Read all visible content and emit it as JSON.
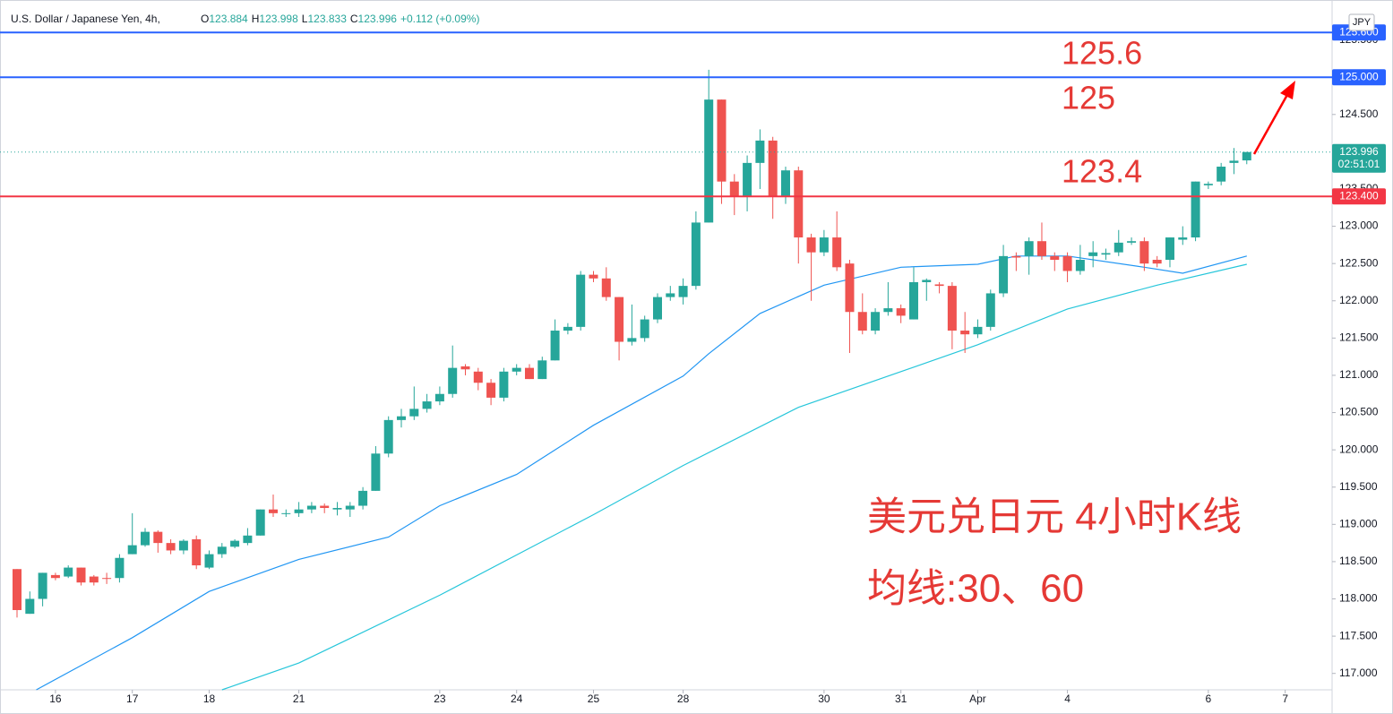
{
  "chart_data": {
    "type": "candlestick",
    "header": {
      "title": "U.S. Dollar / Japanese Yen, 4h,",
      "ohlc": [
        {
          "label": "O",
          "value": "123.884"
        },
        {
          "label": "H",
          "value": "123.998"
        },
        {
          "label": "L",
          "value": "123.833"
        },
        {
          "label": "C",
          "value": "123.996"
        }
      ],
      "change": "+0.112 (+0.09%)"
    },
    "currency": "JPY",
    "up_color": "#26a69a",
    "down_color": "#ef5350",
    "open": [
      118.4,
      117.8,
      118.0,
      118.32,
      118.3,
      118.42,
      118.3,
      118.28,
      118.28,
      118.6,
      118.72,
      118.9,
      118.75,
      118.65,
      118.8,
      118.42,
      118.6,
      118.7,
      118.75,
      118.85,
      119.2,
      119.15,
      119.15,
      119.2,
      119.25,
      119.2,
      119.2,
      119.25,
      119.45,
      119.95,
      120.4,
      120.45,
      120.55,
      120.65,
      120.75,
      121.12,
      121.05,
      120.9,
      120.7,
      121.05,
      121.1,
      120.95,
      121.2,
      121.6,
      121.65,
      122.35,
      122.3,
      122.05,
      121.45,
      121.5,
      121.75,
      122.05,
      122.05,
      122.2,
      123.05,
      124.7,
      123.6,
      123.4,
      123.85,
      124.15,
      123.4,
      123.75,
      122.85,
      122.65,
      122.85,
      122.5,
      121.85,
      121.6,
      121.85,
      121.9,
      121.75,
      122.25,
      122.22,
      122.2,
      121.6,
      121.55,
      121.65,
      122.1,
      122.6,
      122.6,
      122.8,
      122.6,
      122.6,
      122.4,
      122.6,
      122.62,
      122.65,
      122.78,
      122.8,
      122.55,
      122.55,
      122.82,
      122.85,
      123.55,
      123.6,
      123.85,
      123.884
    ],
    "high": [
      118.4,
      118.1,
      118.35,
      118.35,
      118.45,
      118.42,
      118.32,
      118.35,
      118.6,
      119.15,
      118.95,
      118.92,
      118.8,
      118.8,
      118.85,
      118.65,
      118.75,
      118.8,
      118.95,
      119.2,
      119.4,
      119.2,
      119.3,
      119.3,
      119.28,
      119.3,
      119.3,
      119.5,
      120.05,
      120.45,
      120.55,
      120.85,
      120.75,
      120.85,
      121.4,
      121.15,
      121.1,
      120.95,
      121.1,
      121.15,
      121.15,
      121.25,
      121.75,
      121.7,
      122.4,
      122.4,
      122.45,
      122.05,
      121.95,
      121.8,
      122.1,
      122.2,
      122.3,
      123.2,
      125.1,
      124.7,
      123.7,
      123.95,
      124.3,
      124.2,
      123.8,
      123.8,
      122.9,
      122.95,
      123.2,
      122.55,
      122.1,
      121.9,
      122.25,
      121.95,
      122.45,
      122.3,
      122.25,
      122.25,
      121.85,
      121.75,
      122.15,
      122.75,
      122.65,
      122.85,
      123.05,
      122.65,
      122.65,
      122.75,
      122.8,
      122.7,
      122.95,
      122.85,
      122.85,
      122.6,
      122.85,
      123.0,
      123.6,
      123.6,
      123.85,
      124.05,
      123.998
    ],
    "low": [
      117.75,
      117.8,
      117.9,
      118.25,
      118.28,
      118.18,
      118.18,
      118.2,
      118.22,
      118.6,
      118.7,
      118.62,
      118.6,
      118.6,
      118.4,
      118.4,
      118.55,
      118.68,
      118.72,
      118.85,
      119.1,
      119.1,
      119.1,
      119.15,
      119.15,
      119.12,
      119.1,
      119.2,
      119.45,
      119.9,
      120.3,
      120.4,
      120.5,
      120.6,
      120.7,
      121.0,
      120.8,
      120.6,
      120.65,
      121.0,
      120.95,
      120.95,
      121.2,
      121.55,
      121.6,
      122.25,
      122.0,
      121.2,
      121.4,
      121.45,
      121.7,
      122.0,
      121.95,
      122.15,
      123.05,
      123.3,
      123.15,
      123.2,
      123.5,
      123.1,
      123.3,
      122.5,
      122.0,
      122.6,
      122.4,
      121.3,
      121.55,
      121.55,
      121.8,
      121.7,
      121.75,
      122.0,
      122.1,
      121.35,
      121.3,
      121.5,
      121.6,
      122.05,
      122.4,
      122.35,
      122.55,
      122.4,
      122.25,
      122.35,
      122.45,
      122.55,
      122.6,
      122.75,
      122.4,
      122.45,
      122.45,
      122.75,
      122.8,
      123.5,
      123.55,
      123.7,
      123.833
    ],
    "close": [
      117.85,
      118.0,
      118.35,
      118.28,
      118.42,
      118.22,
      118.22,
      118.27,
      118.55,
      118.72,
      118.9,
      118.75,
      118.65,
      118.78,
      118.45,
      118.6,
      118.7,
      118.78,
      118.85,
      119.2,
      119.15,
      119.15,
      119.2,
      119.25,
      119.22,
      119.22,
      119.25,
      119.45,
      119.95,
      120.4,
      120.45,
      120.55,
      120.65,
      120.75,
      121.1,
      121.08,
      120.9,
      120.7,
      121.05,
      121.1,
      120.95,
      121.2,
      121.6,
      121.65,
      122.35,
      122.3,
      122.05,
      121.45,
      121.5,
      121.75,
      122.05,
      122.1,
      122.2,
      123.05,
      124.7,
      123.6,
      123.4,
      123.85,
      124.15,
      123.4,
      123.75,
      122.85,
      122.65,
      122.85,
      122.45,
      121.85,
      121.6,
      121.85,
      121.9,
      121.8,
      122.25,
      122.28,
      122.2,
      121.6,
      121.55,
      121.65,
      122.1,
      122.6,
      122.58,
      122.8,
      122.6,
      122.55,
      122.4,
      122.55,
      122.65,
      122.64,
      122.78,
      122.8,
      122.5,
      122.5,
      122.85,
      122.85,
      123.6,
      123.57,
      123.8,
      123.88,
      123.996
    ],
    "moving_averages": [
      {
        "color": "#2196f3",
        "x": [
          1.5,
          9,
          15,
          22,
          29,
          33,
          39,
          45,
          52,
          54,
          58,
          63,
          69,
          75,
          78,
          82,
          88,
          91,
          96
        ],
        "values": [
          116.78,
          117.48,
          118.1,
          118.53,
          118.83,
          119.25,
          119.67,
          120.33,
          120.99,
          121.29,
          121.83,
          122.21,
          122.45,
          122.49,
          122.6,
          122.6,
          122.45,
          122.37,
          122.6
        ]
      },
      {
        "color": "#26c6da",
        "x": [
          16,
          22,
          33,
          45,
          52,
          61,
          69,
          75,
          82,
          89,
          96
        ],
        "values": [
          116.78,
          117.14,
          118.05,
          119.13,
          119.79,
          120.57,
          121.05,
          121.41,
          121.89,
          122.21,
          122.49
        ]
      }
    ],
    "hlines": [
      {
        "value": 125.6,
        "label": "125.600",
        "color": "#2962ff"
      },
      {
        "value": 125.0,
        "label": "125.000",
        "color": "#2962ff"
      },
      {
        "value": 123.4,
        "label": "123.400",
        "color": "#f23645"
      }
    ],
    "last_price": {
      "value": 123.996,
      "label": "123.996",
      "countdown": "02:51:01"
    },
    "annotations": [
      "125.6",
      "125",
      "123.4",
      "美元兑日元 4小时K线",
      "均线:30、60"
    ],
    "xlim": [
      -0.77,
      102.66
    ],
    "ylim": [
      116.78,
      125.94
    ],
    "xticks": [
      {
        "value": 3,
        "label": "16"
      },
      {
        "value": 9,
        "label": "17"
      },
      {
        "value": 15,
        "label": "18"
      },
      {
        "value": 22,
        "label": "21"
      },
      {
        "value": 33,
        "label": "23"
      },
      {
        "value": 39,
        "label": "24"
      },
      {
        "value": 45,
        "label": "25"
      },
      {
        "value": 52,
        "label": "28"
      },
      {
        "value": 63,
        "label": "30"
      },
      {
        "value": 69,
        "label": "31"
      },
      {
        "value": 75,
        "label": "Apr"
      },
      {
        "value": 82,
        "label": "4"
      },
      {
        "value": 93,
        "label": "6"
      },
      {
        "value": 99,
        "label": "7"
      }
    ],
    "yticks": [
      {
        "value": 117,
        "label": "117.000"
      },
      {
        "value": 117.5,
        "label": "117.500"
      },
      {
        "value": 118,
        "label": "118.000"
      },
      {
        "value": 118.5,
        "label": "118.500"
      },
      {
        "value": 119,
        "label": "119.000"
      },
      {
        "value": 119.5,
        "label": "119.500"
      },
      {
        "value": 120,
        "label": "120.000"
      },
      {
        "value": 120.5,
        "label": "120.500"
      },
      {
        "value": 121,
        "label": "121.000"
      },
      {
        "value": 121.5,
        "label": "121.500"
      },
      {
        "value": 122,
        "label": "122.000"
      },
      {
        "value": 122.5,
        "label": "122.500"
      },
      {
        "value": 123,
        "label": "123.000"
      },
      {
        "value": 123.5,
        "label": "123.500"
      },
      {
        "value": 124,
        "label": "124.000"
      },
      {
        "value": 124.5,
        "label": "124.500"
      },
      {
        "value": 125,
        "label": "125.000"
      },
      {
        "value": 125.5,
        "label": "125.500"
      }
    ]
  }
}
